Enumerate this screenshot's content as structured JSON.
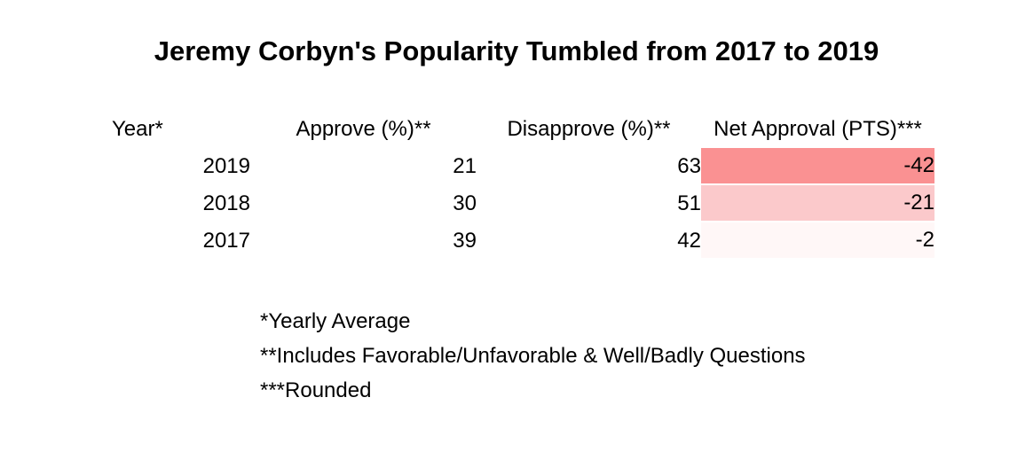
{
  "title": "Jeremy Corbyn's Popularity Tumbled from 2017 to 2019",
  "table": {
    "headers": [
      "Year*",
      "Approve (%)**",
      "Disapprove (%)**",
      "Net Approval (PTS)***"
    ],
    "rows": [
      {
        "year": "2019",
        "approve": "21",
        "disapprove": "63",
        "net": "-42",
        "net_bg": "#FA9192"
      },
      {
        "year": "2018",
        "approve": "30",
        "disapprove": "51",
        "net": "-21",
        "net_bg": "#FBC9CB"
      },
      {
        "year": "2017",
        "approve": "39",
        "disapprove": "42",
        "net": "-2",
        "net_bg": "#FFF7F7"
      }
    ]
  },
  "footnotes": [
    "*Yearly Average",
    "**Includes Favorable/Unfavorable & Well/Badly Questions",
    "***Rounded"
  ],
  "colors": {
    "background": "#FFFFFF",
    "text": "#000000",
    "net_scale_strong_negative": "#FA9192",
    "net_scale_mid_negative": "#FBC9CB",
    "net_scale_near_zero": "#FFF7F7"
  },
  "chart_data": {
    "type": "table",
    "title": "Jeremy Corbyn's Popularity Tumbled from 2017 to 2019",
    "columns": [
      "Year*",
      "Approve (%)**",
      "Disapprove (%)**",
      "Net Approval (PTS)***"
    ],
    "rows": [
      [
        2019,
        21,
        63,
        -42
      ],
      [
        2018,
        30,
        51,
        -21
      ],
      [
        2017,
        39,
        42,
        -2
      ]
    ],
    "notes": [
      "*Yearly Average",
      "**Includes Favorable/Unfavorable & Well/Badly Questions",
      "***Rounded"
    ],
    "conditional_formatting": "Net Approval (PTS) cells shaded on a red-to-white scale; more negative values are darker red"
  }
}
